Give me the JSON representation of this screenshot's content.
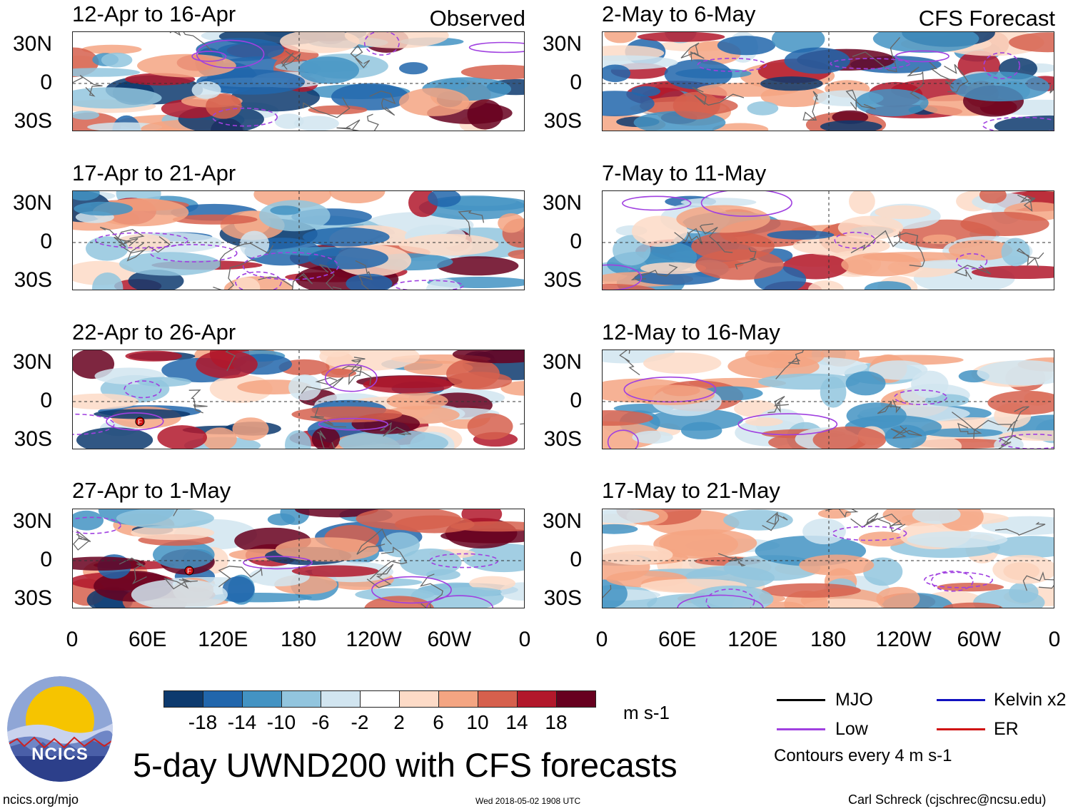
{
  "column_labels": {
    "left": "Observed",
    "right": "CFS Forecast"
  },
  "panels": [
    {
      "id": "obs-1",
      "period": "12-Apr to 16-Apr",
      "column": "observed",
      "tc_markers": 0
    },
    {
      "id": "obs-2",
      "period": "17-Apr to 21-Apr",
      "column": "observed",
      "tc_markers": 0
    },
    {
      "id": "obs-3",
      "period": "22-Apr to 26-Apr",
      "column": "observed",
      "tc_markers": 1
    },
    {
      "id": "obs-4",
      "period": "27-Apr to 1-May",
      "column": "observed",
      "tc_markers": 1
    },
    {
      "id": "fc-1",
      "period": "2-May to 6-May",
      "column": "forecast",
      "tc_markers": 0
    },
    {
      "id": "fc-2",
      "period": "7-May to 11-May",
      "column": "forecast",
      "tc_markers": 0
    },
    {
      "id": "fc-3",
      "period": "12-May to 16-May",
      "column": "forecast",
      "tc_markers": 0
    },
    {
      "id": "fc-4",
      "period": "17-May to 21-May",
      "column": "forecast",
      "tc_markers": 0
    }
  ],
  "lat_ticks": [
    "30N",
    "0",
    "30S"
  ],
  "lon_ticks": [
    "0",
    "60E",
    "120E",
    "180",
    "120W",
    "60W",
    "0"
  ],
  "tc_marker_symbol": "F",
  "colorbar": {
    "tick_labels": [
      "-18",
      "-14",
      "-10",
      "-6",
      "-2",
      "2",
      "6",
      "10",
      "14",
      "18"
    ],
    "units": "m s-1",
    "colors": [
      "#0d3a6e",
      "#2166ac",
      "#4393c3",
      "#92c5de",
      "#d1e5f0",
      "#ffffff",
      "#fddbc7",
      "#f4a582",
      "#d6604d",
      "#b2182b",
      "#67001f"
    ]
  },
  "legend": {
    "items": [
      {
        "label": "MJO",
        "color": "#000000"
      },
      {
        "label": "Kelvin x2",
        "color": "#1010c0"
      },
      {
        "label": "Low",
        "color": "#a040e0"
      },
      {
        "label": "ER",
        "color": "#d01010"
      }
    ],
    "note": "Contours every 4 m s-1"
  },
  "main_title": "5-day UWND200 with CFS forecasts",
  "logo_text": "NCICS",
  "footer": {
    "url": "ncics.org/mjo",
    "timestamp": "Wed 2018-05-02 1908 UTC",
    "credit": "Carl Schreck (cjschrec@ncsu.edu)"
  }
}
